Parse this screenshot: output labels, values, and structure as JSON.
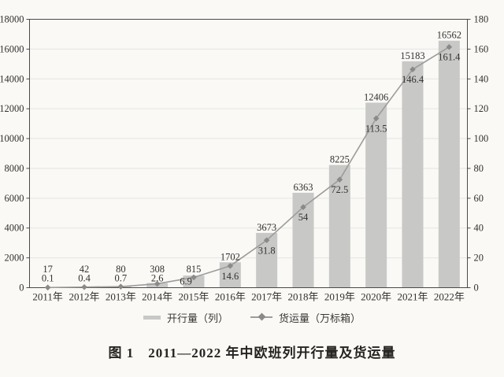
{
  "caption": "图 1　2011—2022 年中欧班列开行量及货运量",
  "legend": {
    "bar": "开行量（列）",
    "line": "货运量（万标箱）"
  },
  "colors": {
    "paper": "#faf9f6",
    "bar": "#c8c8c7",
    "line": "#9c9c9b",
    "marker": "#8a8a89",
    "grid": "#e5e4e1",
    "axis": "#4b4a47",
    "text": "#33312e"
  },
  "chart_data": {
    "type": "combo_bar_line",
    "title": "图 1　2011—2022 年中欧班列开行量及货运量",
    "categories": [
      "2011年",
      "2012年",
      "2013年",
      "2014年",
      "2015年",
      "2016年",
      "2017年",
      "2018年",
      "2019年",
      "2020年",
      "2021年",
      "2022年"
    ],
    "series": [
      {
        "name": "开行量（列）",
        "kind": "bar",
        "axis": "left",
        "values": [
          17,
          42,
          80,
          308,
          815,
          1702,
          3673,
          6363,
          8225,
          12406,
          15183,
          16562
        ]
      },
      {
        "name": "货运量（万标箱）",
        "kind": "line",
        "axis": "right",
        "values": [
          0.1,
          0.4,
          0.7,
          2.6,
          6.9,
          14.6,
          31.8,
          54,
          72.5,
          113.5,
          146.4,
          161.4
        ]
      }
    ],
    "left_axis": {
      "min": 0,
      "max": 18000,
      "step": 2000
    },
    "right_axis": {
      "min": 0,
      "max": 180,
      "step": 20
    },
    "grid": true,
    "data_labels": true,
    "legend_position": "bottom"
  }
}
